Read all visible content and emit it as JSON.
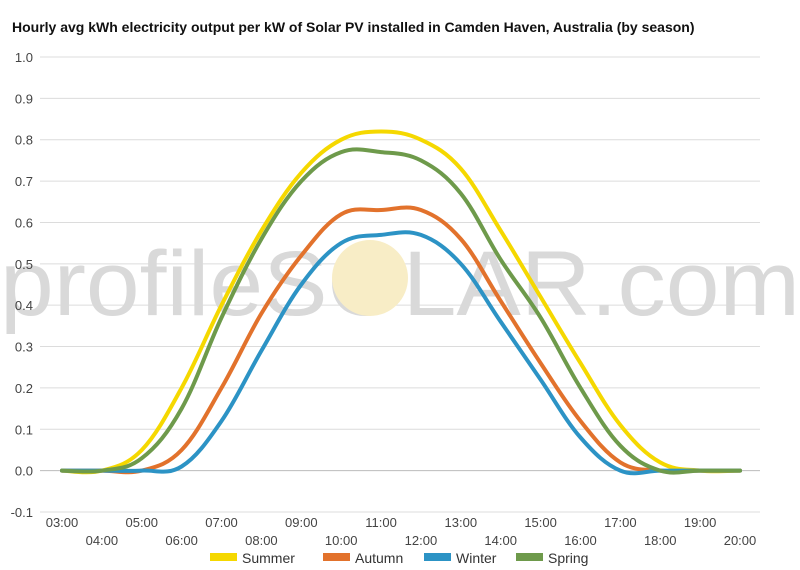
{
  "chart_data": {
    "type": "line",
    "title": "Hourly avg kWh electricity output per kW of Solar PV installed in Camden Haven, Australia (by season)",
    "watermark": "profileSOLAR.com",
    "xlabel": "",
    "ylabel": "",
    "ylim": [
      -0.1,
      1.0
    ],
    "y_ticks": [
      "-0.1",
      "0.0",
      "0.1",
      "0.2",
      "0.3",
      "0.4",
      "0.5",
      "0.6",
      "0.7",
      "0.8",
      "0.9",
      "1.0"
    ],
    "x": [
      "03:00",
      "04:00",
      "05:00",
      "06:00",
      "07:00",
      "08:00",
      "09:00",
      "10:00",
      "11:00",
      "12:00",
      "13:00",
      "14:00",
      "15:00",
      "16:00",
      "17:00",
      "18:00",
      "19:00",
      "20:00"
    ],
    "grid": true,
    "legend_position": "bottom",
    "series": [
      {
        "name": "Summer",
        "color": "#f5d800",
        "values": [
          0.0,
          0.0,
          0.05,
          0.2,
          0.4,
          0.58,
          0.72,
          0.8,
          0.82,
          0.8,
          0.73,
          0.58,
          0.42,
          0.26,
          0.11,
          0.02,
          0.0,
          0.0
        ]
      },
      {
        "name": "Autumn",
        "color": "#e2722c",
        "values": [
          0.0,
          0.0,
          0.0,
          0.05,
          0.2,
          0.38,
          0.52,
          0.62,
          0.63,
          0.63,
          0.56,
          0.41,
          0.26,
          0.12,
          0.02,
          0.0,
          0.0,
          0.0
        ]
      },
      {
        "name": "Winter",
        "color": "#2c93c5",
        "values": [
          0.0,
          0.0,
          0.0,
          0.01,
          0.12,
          0.29,
          0.45,
          0.55,
          0.57,
          0.57,
          0.5,
          0.36,
          0.22,
          0.08,
          0.0,
          0.0,
          0.0,
          0.0
        ]
      },
      {
        "name": "Spring",
        "color": "#6e9a4b",
        "values": [
          0.0,
          0.0,
          0.03,
          0.15,
          0.37,
          0.56,
          0.7,
          0.77,
          0.77,
          0.75,
          0.67,
          0.51,
          0.37,
          0.2,
          0.06,
          0.0,
          0.0,
          0.0
        ]
      }
    ]
  }
}
